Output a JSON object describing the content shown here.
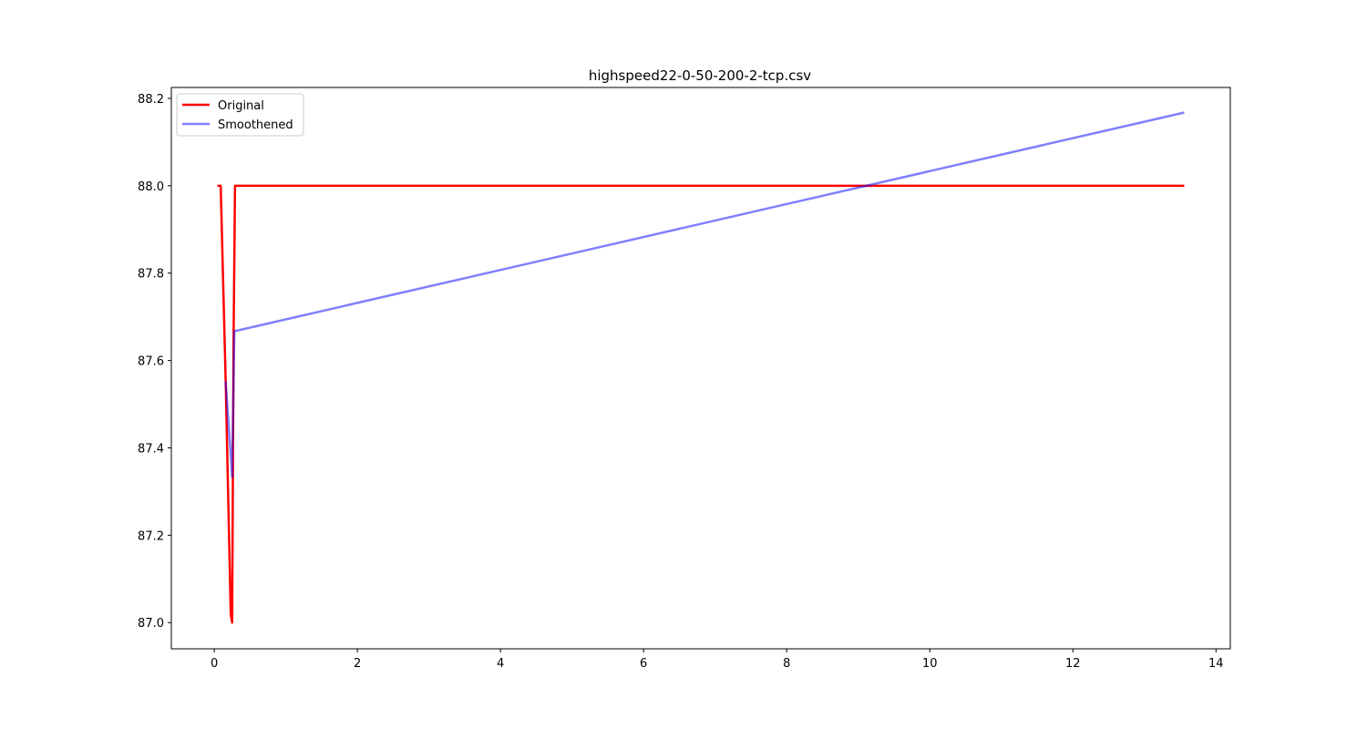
{
  "chart_data": {
    "type": "line",
    "title": "highspeed22-0-50-200-2-tcp.csv",
    "xlabel": "",
    "ylabel": "",
    "xlim": [
      -0.6,
      14.2
    ],
    "ylim": [
      86.94,
      88.225
    ],
    "xticks": [
      0,
      2,
      4,
      6,
      8,
      10,
      12,
      14
    ],
    "yticks": [
      87.0,
      87.2,
      87.4,
      87.6,
      87.8,
      88.0,
      88.2
    ],
    "ytick_labels": [
      "87.0",
      "87.2",
      "87.4",
      "87.6",
      "87.8",
      "88.0",
      "88.2"
    ],
    "grid": false,
    "legend_position": "top-left",
    "series": [
      {
        "name": "Original",
        "color": "#ff0000",
        "alpha": 1.0,
        "x": [
          0.06,
          0.09,
          0.16,
          0.23,
          0.25,
          0.27,
          0.29,
          13.54
        ],
        "y": [
          88.0,
          88.0,
          87.55,
          87.02,
          87.0,
          87.65,
          88.0,
          88.0
        ]
      },
      {
        "name": "Smoothened",
        "color": "#0000ff",
        "alpha": 0.5,
        "x": [
          0.16,
          0.25,
          0.28,
          13.54
        ],
        "y": [
          87.55,
          87.333,
          87.667,
          88.167
        ]
      }
    ]
  }
}
